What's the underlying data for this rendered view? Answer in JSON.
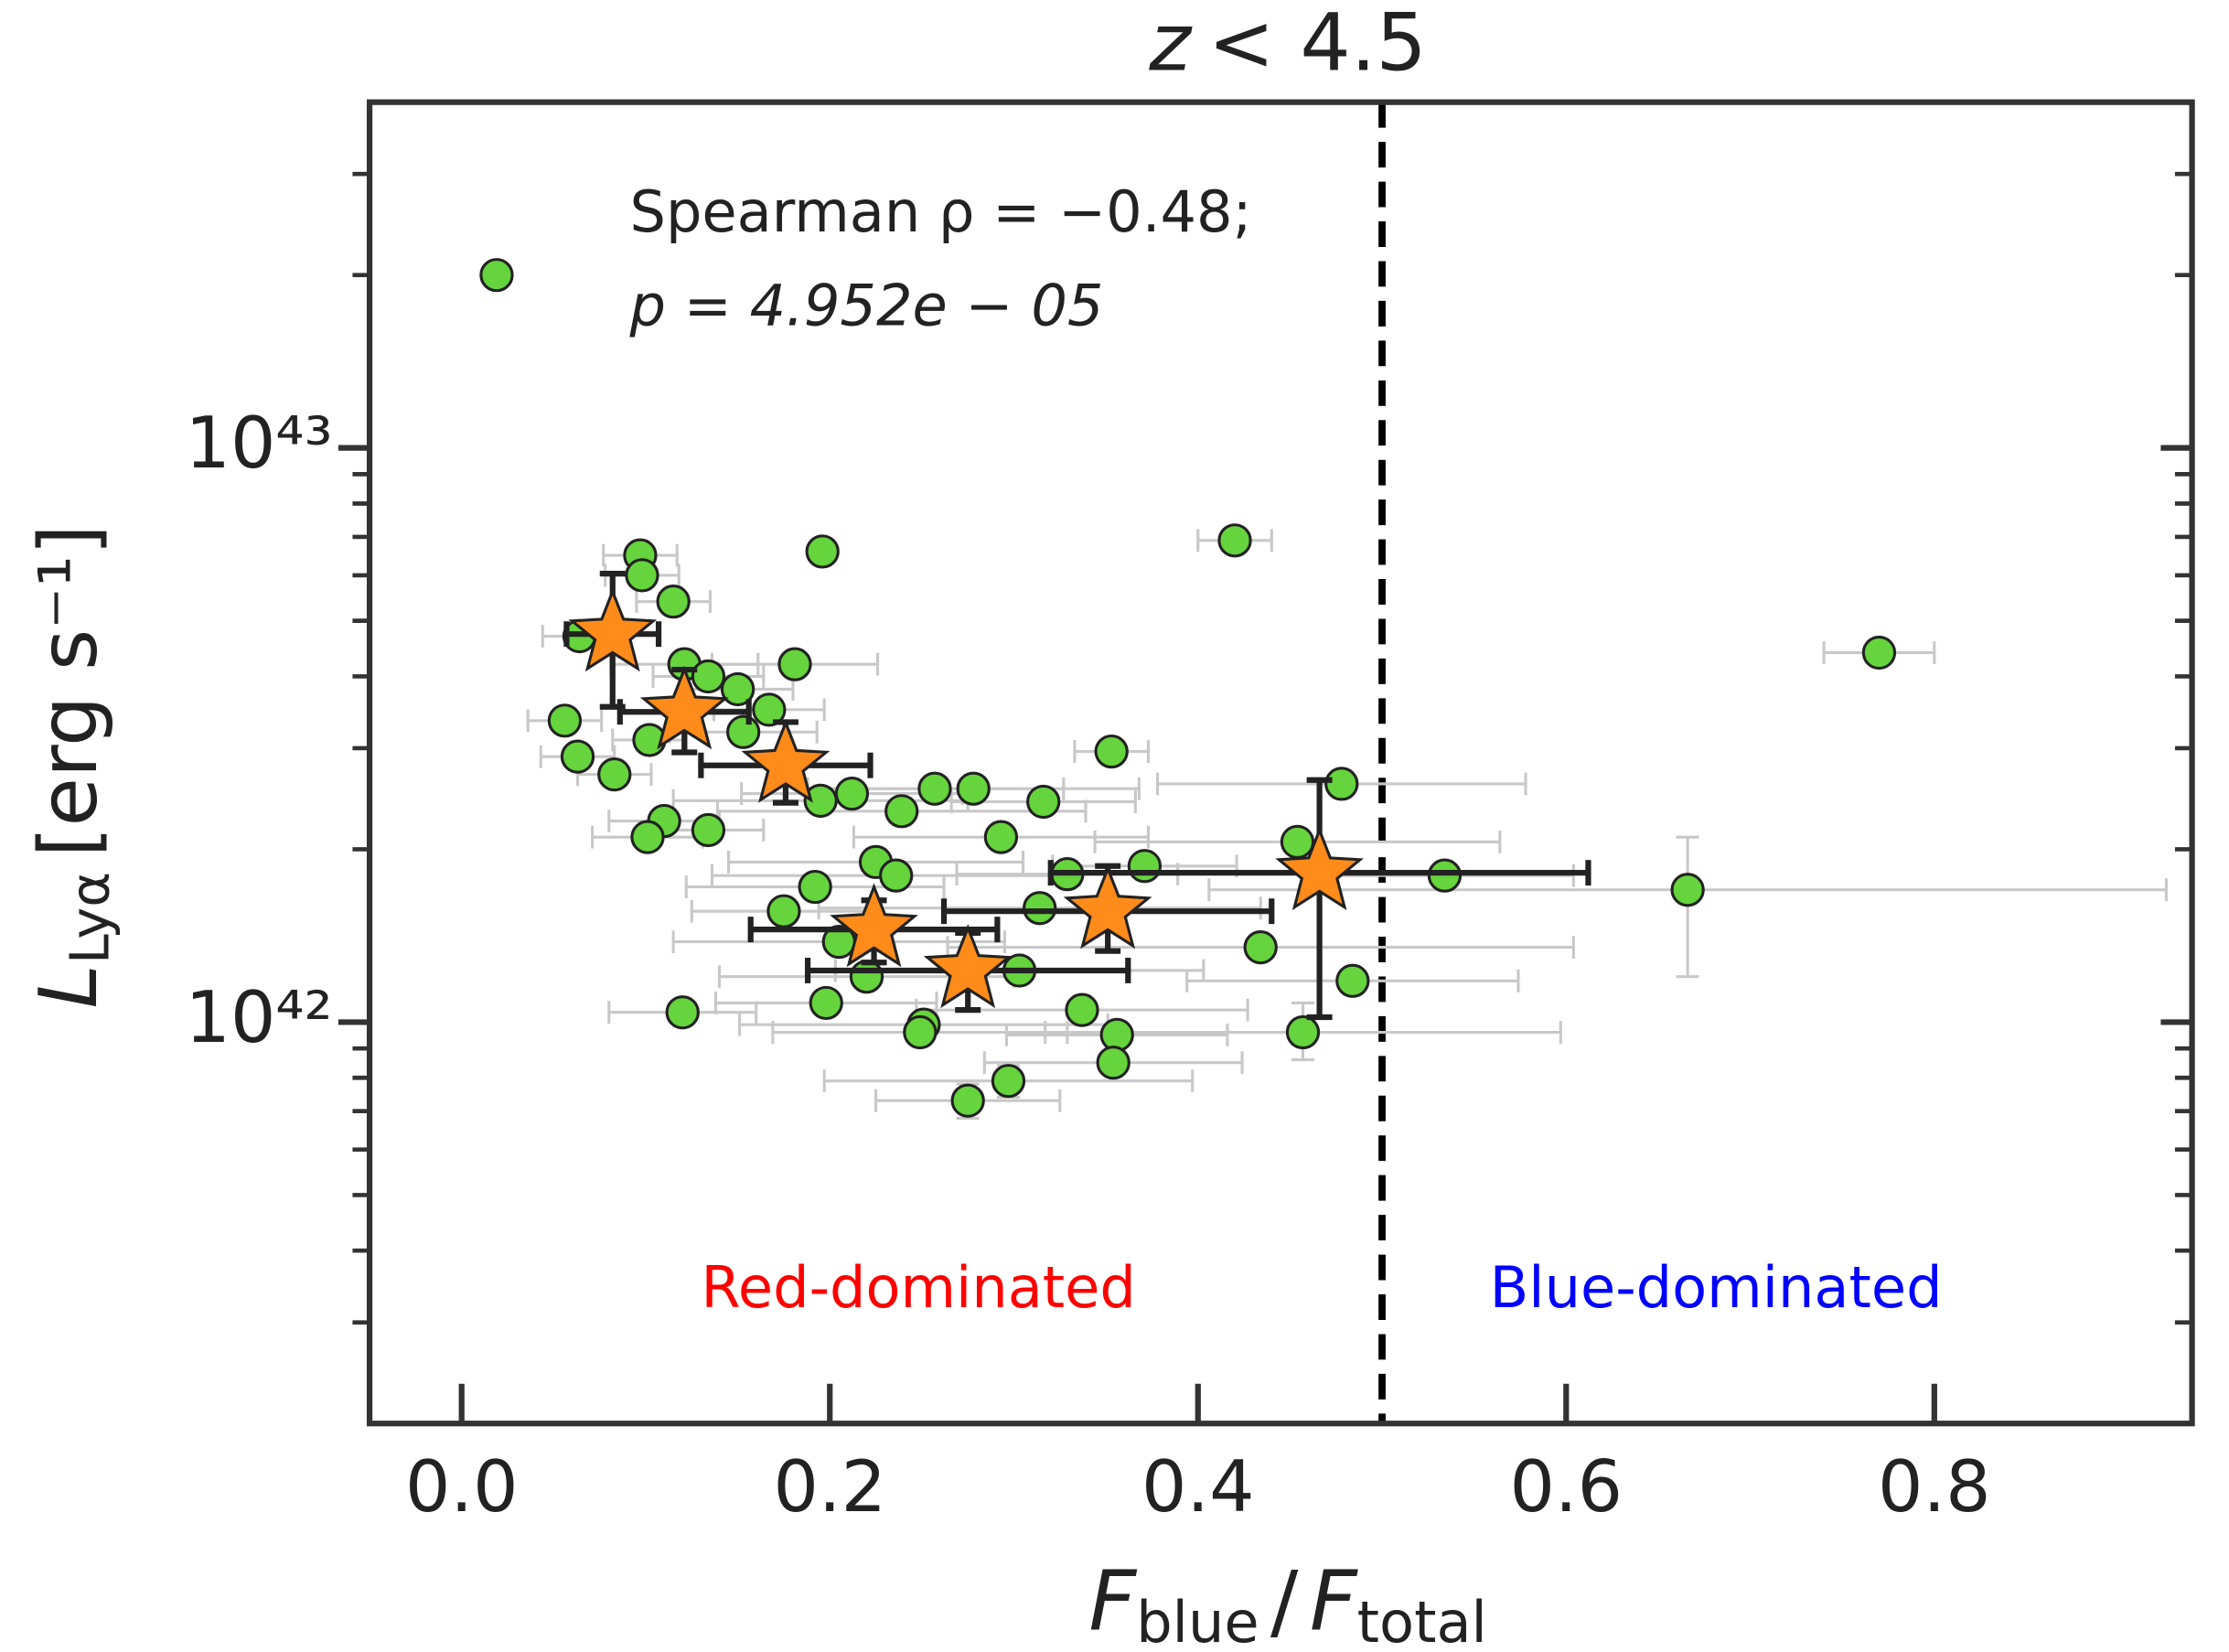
{
  "chart_data": {
    "type": "scatter",
    "title": [
      "z",
      "< 4.5"
    ],
    "xlabel": [
      "F",
      "blue",
      "/",
      "F",
      "total"
    ],
    "ylabel": [
      "L",
      "Lyα",
      "[erg s⁻¹]"
    ],
    "annotations": [
      "Spearman ρ = −0.48;",
      "p = 4.952e − 05"
    ],
    "region_labels": [
      {
        "text": "Red-dominated",
        "color": "#ff0000"
      },
      {
        "text": "Blue-dominated",
        "color": "#0000ff"
      }
    ],
    "divider_x": 0.5,
    "xlim": [
      -0.05,
      0.94
    ],
    "ylim": [
      2e+41,
      4e+43
    ],
    "ylog": true,
    "xticks": [
      {
        "value": 0,
        "label": "0.0"
      },
      0.2,
      0.4,
      0.6,
      0.8
    ],
    "yticks": [
      {
        "value": 1e+42,
        "label": "10⁴²"
      },
      {
        "value": 1e+43,
        "label": "10⁴³"
      }
    ],
    "yminor_ticks": [
      3e+41,
      4e+41,
      5e+41,
      6e+41,
      7e+41,
      8e+41,
      9e+41,
      2e+42,
      3e+42,
      4e+42,
      5e+42,
      6e+42,
      7e+42,
      8e+42,
      9e+42,
      2e+43,
      3e+43
    ],
    "series": [
      {
        "marker": "circle",
        "color": "#66d43c",
        "errorbar_color": "#c8c8c8",
        "x": [
          0.019,
          0.77,
          0.42,
          0.196,
          0.097,
          0.098,
          0.115,
          0.064,
          0.181,
          0.121,
          0.134,
          0.15,
          0.167,
          0.056,
          0.153,
          0.102,
          0.353,
          0.063,
          0.083,
          0.478,
          0.257,
          0.278,
          0.212,
          0.195,
          0.316,
          0.239,
          0.11,
          0.134,
          0.101,
          0.293,
          0.454,
          0.225,
          0.371,
          0.329,
          0.534,
          0.236,
          0.192,
          0.666,
          0.175,
          0.314,
          0.205,
          0.434,
          0.303,
          0.22,
          0.484,
          0.198,
          0.12,
          0.337,
          0.251,
          0.249,
          0.457,
          0.356,
          0.354,
          0.297,
          0.275
        ],
        "y": [
          2e+43,
          4.4e+42,
          6.9e+42,
          6.6e+42,
          6.5e+42,
          6e+42,
          5.4e+42,
          4.7e+42,
          4.2e+42,
          4.2e+42,
          4e+42,
          3.8e+42,
          3.5e+42,
          3.35e+42,
          3.2e+42,
          3.1e+42,
          2.96e+42,
          2.9e+42,
          2.7e+42,
          2.6e+42,
          2.55e+42,
          2.55e+42,
          2.5e+42,
          2.43e+42,
          2.42e+42,
          2.33e+42,
          2.24e+42,
          2.16e+42,
          2.1e+42,
          2.1e+42,
          2.06e+42,
          1.9e+42,
          1.87e+42,
          1.81e+42,
          1.8e+42,
          1.8e+42,
          1.72e+42,
          1.7e+42,
          1.56e+42,
          1.58e+42,
          1.38e+42,
          1.35e+42,
          1.23e+42,
          1.2e+42,
          1.18e+42,
          1.08e+42,
          1.04e+42,
          1.05e+42,
          9.9e+41,
          9.6e+41,
          9.6e+41,
          9.5e+41,
          8.5e+41,
          7.9e+41,
          7.3e+41
        ],
        "xerr": [
          null,
          0.03,
          0.02,
          null,
          0.02,
          0.02,
          0.02,
          0.02,
          0.045,
          0.04,
          0.03,
          0.03,
          0.03,
          0.02,
          0.04,
          0.02,
          0.02,
          0.02,
          0.02,
          0.1,
          0.07,
          0.09,
          0.06,
          0.08,
          0.05,
          0.1,
          0.03,
          0.03,
          0.03,
          0.08,
          0.11,
          0.08,
          0.05,
          0.06,
          0.07,
          0.1,
          0.07,
          0.26,
          0.05,
          0.12,
          0.09,
          0.17,
          0.1,
          0.08,
          0.09,
          0.06,
          0.04,
          0.09,
          0.1,
          0.08,
          0.14,
          0.06,
          0.07,
          0.1,
          0.05
        ],
        "yerr": [
          null,
          null,
          null,
          null,
          null,
          null,
          null,
          null,
          null,
          null,
          null,
          null,
          null,
          null,
          null,
          null,
          null,
          null,
          null,
          null,
          null,
          null,
          null,
          null,
          null,
          null,
          null,
          null,
          null,
          null,
          null,
          null,
          null,
          null,
          null,
          null,
          null,
          [
            5e+41,
            4e+41
          ],
          null,
          null,
          null,
          null,
          null,
          null,
          null,
          null,
          null,
          null,
          null,
          null,
          [
            1e+41,
            1.2e+41
          ],
          null,
          null,
          [
            5e+40,
            5e+40
          ],
          [
            5e+40,
            5e+40
          ]
        ]
      },
      {
        "marker": "star",
        "color": "#ff8c1a",
        "errorbar_color": "#222222",
        "x": [
          0.082,
          0.121,
          0.176,
          0.224,
          0.275,
          0.351,
          0.466
        ],
        "y": [
          4.74e+42,
          3.47e+42,
          2.8e+42,
          1.45e+42,
          1.23e+42,
          1.56e+42,
          1.82e+42
        ],
        "xerr": [
          0.025,
          0.035,
          0.046,
          0.067,
          0.087,
          0.089,
          0.146
        ],
        "yerr": [
          [
            1.2e+42,
            1.3e+42
          ],
          [
            5.2e+41,
            6.4e+41
          ],
          [
            3.9e+41,
            5.3e+41
          ],
          [
            1.8e+41,
            1.8e+41
          ],
          [
            1.8e+41,
            2e+41
          ],
          [
            2.3e+41,
            3.1e+41
          ],
          [
            8e+41,
            8.2e+41
          ]
        ]
      }
    ]
  }
}
